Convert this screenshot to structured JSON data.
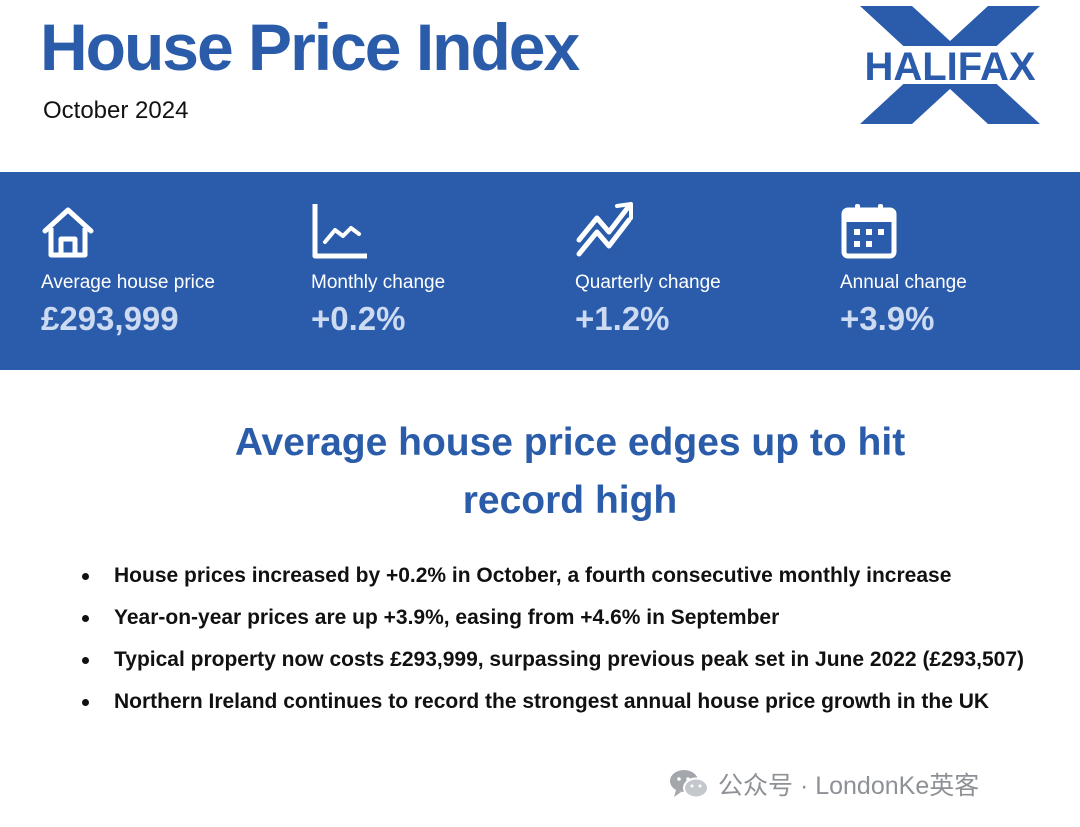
{
  "header": {
    "title": "House Price Index",
    "subtitle": "October 2024",
    "logo_text": "HALIFAX",
    "brand_color": "#2b5cab"
  },
  "stats": [
    {
      "icon": "house-icon",
      "label": "Average house price",
      "value": "£293,999"
    },
    {
      "icon": "line-chart-icon",
      "label": "Monthly change",
      "value": "+0.2%"
    },
    {
      "icon": "zigzag-arrows-icon",
      "label": "Quarterly change",
      "value": "+1.2%"
    },
    {
      "icon": "calendar-icon",
      "label": "Annual change",
      "value": "+3.9%"
    }
  ],
  "headline": {
    "line1": "Average house price edges up to hit",
    "line2": "record high"
  },
  "bullets": [
    "House prices increased by +0.2% in October, a fourth consecutive monthly increase",
    "Year-on-year prices are up +3.9%, easing from +4.6% in September",
    "Typical property now costs £293,999, surpassing previous peak set in June 2022 (£293,507)",
    "Northern Ireland continues to record the strongest annual house price growth in the UK"
  ],
  "watermark": {
    "text": "公众号 · LondonKe英客",
    "icon": "wechat-icon"
  }
}
